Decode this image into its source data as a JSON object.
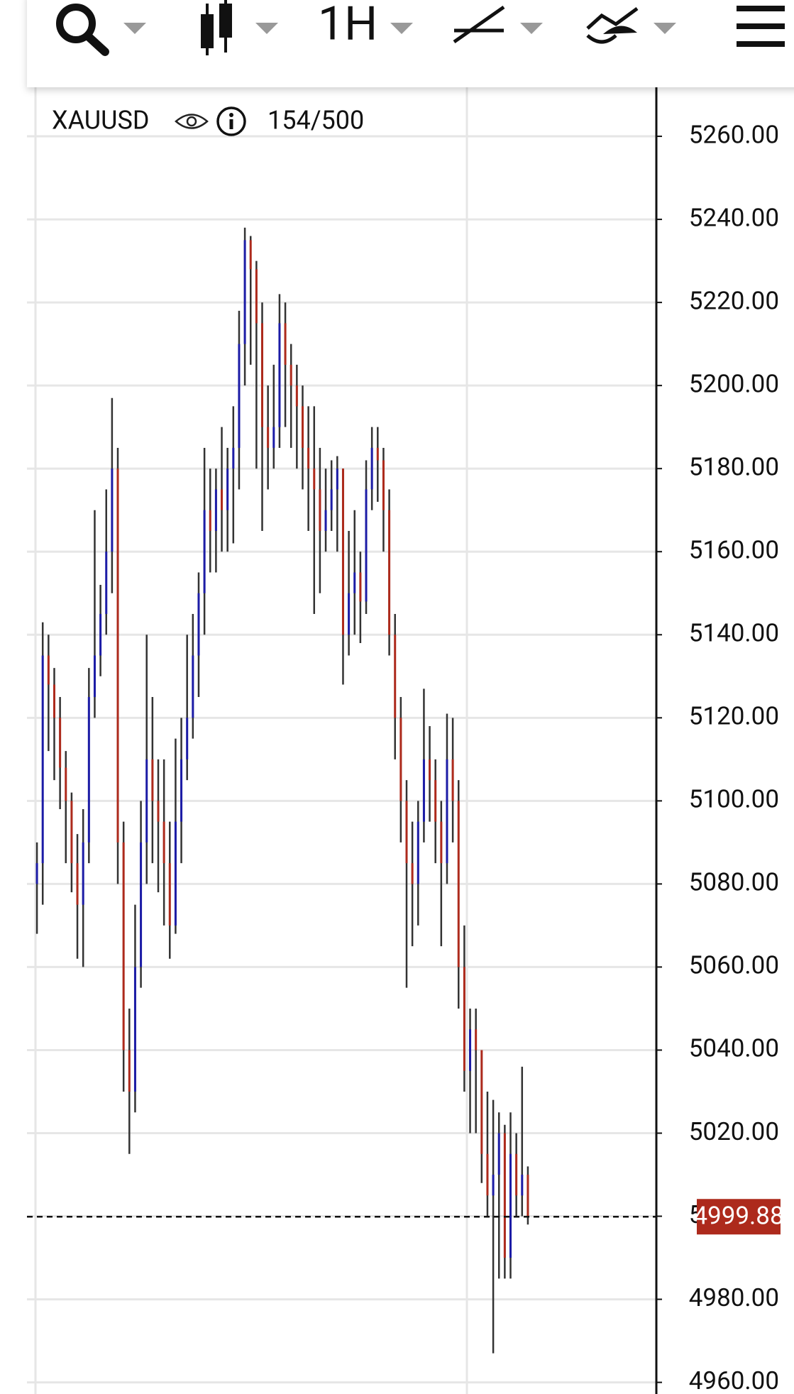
{
  "chart_data": {
    "type": "candlestick",
    "symbol": "XAUUSD",
    "bar_count": "154/500",
    "timeframe": "1H",
    "up_color": "#1c1ca6",
    "down_color": "#ad2a1c",
    "wick_color": "#333333",
    "grid": true,
    "ylim": [
      4957.2,
      5271.8
    ],
    "yticks": [
      {
        "value": 4960,
        "label": "4960.00"
      },
      {
        "value": 4980,
        "label": "4980.00"
      },
      {
        "value": 5000,
        "label": "5000.00"
      },
      {
        "value": 5020,
        "label": "5020.00"
      },
      {
        "value": 5040,
        "label": "5040.00"
      },
      {
        "value": 5060,
        "label": "5060.00"
      },
      {
        "value": 5080,
        "label": "5080.00"
      },
      {
        "value": 5100,
        "label": "5100.00"
      },
      {
        "value": 5120,
        "label": "5120.00"
      },
      {
        "value": 5140,
        "label": "5140.00"
      },
      {
        "value": 5160,
        "label": "5160.00"
      },
      {
        "value": 5180,
        "label": "5180.00"
      },
      {
        "value": 5200,
        "label": "5200.00"
      },
      {
        "value": 5220,
        "label": "5220.00"
      },
      {
        "value": 5240,
        "label": "5240.00"
      },
      {
        "value": 5260,
        "label": "5260.00"
      }
    ],
    "last_price": 4999.88,
    "last_price_color": "#ad2a1c",
    "open": [
      5080,
      5085,
      5135,
      5128,
      5120,
      5108,
      5100,
      5085,
      5075,
      5090,
      5125,
      5135,
      5145,
      5160,
      5180,
      5090,
      5040,
      5030,
      5060,
      5090,
      5110,
      5100,
      5095,
      5085,
      5070,
      5095,
      5110,
      5120,
      5135,
      5150,
      5170,
      5165,
      5175,
      5170,
      5180,
      5185,
      5210,
      5235,
      5228,
      5215,
      5190,
      5185,
      5190,
      5215,
      5205,
      5200,
      5195,
      5185,
      5180,
      5175,
      5165,
      5170,
      5175,
      5180,
      5140,
      5150,
      5155,
      5148,
      5175,
      5185,
      5182,
      5170,
      5140,
      5120,
      5100,
      5085,
      5080,
      5095,
      5110,
      5105,
      5095,
      5085,
      5110,
      5100,
      5060,
      5035,
      5045,
      5040,
      5015,
      5005,
      5010,
      5020,
      4990,
      5015,
      5005,
      5010
    ],
    "high": [
      5090,
      5143,
      5140,
      5132,
      5125,
      5112,
      5102,
      5092,
      5098,
      5132,
      5170,
      5152,
      5175,
      5197,
      5185,
      5095,
      5050,
      5075,
      5100,
      5140,
      5125,
      5110,
      5110,
      5095,
      5115,
      5120,
      5140,
      5145,
      5155,
      5185,
      5180,
      5180,
      5190,
      5185,
      5195,
      5218,
      5238,
      5236,
      5230,
      5220,
      5200,
      5205,
      5222,
      5220,
      5210,
      5205,
      5200,
      5195,
      5195,
      5185,
      5180,
      5182,
      5183,
      5180,
      5165,
      5170,
      5160,
      5182,
      5190,
      5190,
      5185,
      5175,
      5145,
      5125,
      5105,
      5095,
      5100,
      5127,
      5118,
      5110,
      5100,
      5121,
      5120,
      5105,
      5070,
      5050,
      5050,
      5040,
      5030,
      5028,
      5025,
      5022,
      5025,
      5020,
      5036,
      5012
    ],
    "low": [
      5068,
      5075,
      5112,
      5105,
      5098,
      5085,
      5078,
      5062,
      5060,
      5085,
      5120,
      5130,
      5140,
      5150,
      5080,
      5030,
      5015,
      5025,
      5055,
      5080,
      5085,
      5078,
      5070,
      5062,
      5068,
      5085,
      5105,
      5115,
      5125,
      5140,
      5155,
      5155,
      5160,
      5160,
      5162,
      5175,
      5200,
      5205,
      5180,
      5165,
      5175,
      5180,
      5185,
      5190,
      5185,
      5180,
      5175,
      5165,
      5145,
      5150,
      5160,
      5165,
      5160,
      5128,
      5135,
      5140,
      5138,
      5145,
      5170,
      5172,
      5160,
      5135,
      5110,
      5090,
      5055,
      5065,
      5070,
      5090,
      5095,
      5085,
      5065,
      5080,
      5090,
      5050,
      5030,
      5020,
      5020,
      5008,
      5000,
      4967,
      4985,
      4985,
      4985,
      5000,
      5000,
      4998
    ],
    "close": [
      5085,
      5135,
      5128,
      5120,
      5108,
      5100,
      5085,
      5075,
      5090,
      5125,
      5135,
      5145,
      5160,
      5180,
      5090,
      5040,
      5030,
      5060,
      5090,
      5110,
      5100,
      5095,
      5085,
      5070,
      5095,
      5110,
      5120,
      5135,
      5150,
      5170,
      5165,
      5175,
      5170,
      5180,
      5185,
      5210,
      5235,
      5228,
      5215,
      5190,
      5185,
      5190,
      5215,
      5205,
      5200,
      5195,
      5185,
      5180,
      5175,
      5165,
      5170,
      5175,
      5180,
      5140,
      5150,
      5155,
      5148,
      5175,
      5185,
      5182,
      5170,
      5140,
      5120,
      5100,
      5085,
      5080,
      5095,
      5110,
      5105,
      5095,
      5085,
      5110,
      5100,
      5060,
      5035,
      5045,
      5040,
      5015,
      5005,
      5010,
      5020,
      4990,
      5015,
      5005,
      5010,
      4999.88
    ]
  }
}
